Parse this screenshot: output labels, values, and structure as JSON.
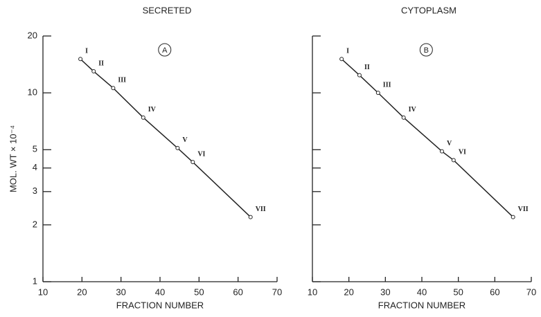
{
  "chart_data": [
    {
      "type": "line",
      "title": "SECRETED",
      "annotation": "A",
      "x_label": "FRACTION NUMBER",
      "y_label": "MOL. WT × 10⁻⁴",
      "log_y": true,
      "color": "#222222",
      "ytick_labels": true,
      "x": [
        19.6,
        23,
        28,
        35.7,
        44.5,
        48.4,
        63.2
      ],
      "values": [
        15.1,
        13.0,
        10.6,
        7.4,
        5.1,
        4.3,
        2.2
      ],
      "labels": [
        "I",
        "II",
        "III",
        "IV",
        "V",
        "VI",
        "VII"
      ],
      "xlim": [
        10,
        70
      ],
      "xticks": [
        10,
        20,
        30,
        40,
        50,
        60,
        70
      ],
      "ylim": [
        1,
        20
      ],
      "yticks": [
        1,
        2,
        3,
        4,
        5,
        10,
        20
      ]
    },
    {
      "type": "line",
      "title": "CYTOPLASM",
      "annotation": "B",
      "x_label": "FRACTION NUMBER",
      "log_y": true,
      "color": "#222222",
      "ytick_labels": false,
      "x": [
        18,
        22.9,
        28,
        35,
        45.5,
        48.7,
        65
      ],
      "values": [
        15.1,
        12.4,
        10,
        7.4,
        4.9,
        4.4,
        2.2
      ],
      "labels": [
        "I",
        "II",
        "III",
        "IV",
        "V",
        "VI",
        "VII"
      ],
      "xlim": [
        10,
        70
      ],
      "xticks": [
        10,
        20,
        30,
        40,
        50,
        60,
        70
      ],
      "ylim": [
        1,
        20
      ],
      "yticks": [
        1,
        2,
        3,
        4,
        5,
        10,
        20
      ]
    }
  ]
}
